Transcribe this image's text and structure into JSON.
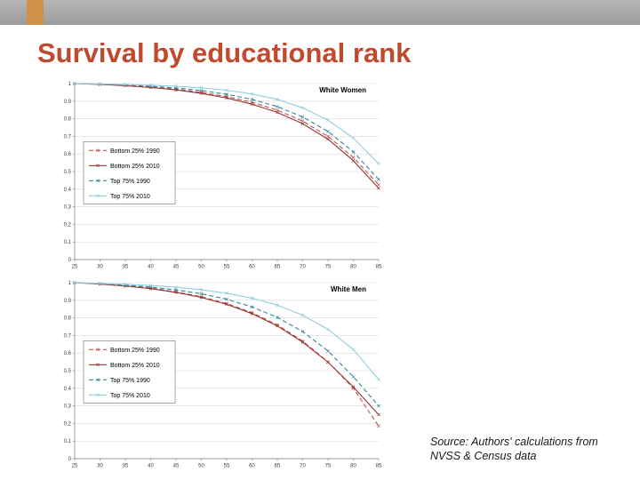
{
  "slide": {
    "title": "Survival by educational rank",
    "source_line1": "Source: Authors' calculations from",
    "source_line2": "NVSS & Census data"
  },
  "chart_data": [
    {
      "type": "line",
      "title": "White Women",
      "xlabel": "",
      "ylabel": "",
      "grid": true,
      "legend_position": "left-middle",
      "ylim": [
        0,
        1
      ],
      "yticks": [
        "1",
        "0.9",
        "0.8",
        "0.7",
        "0.6",
        "0.5",
        "0.4",
        "0.3",
        "0.2",
        "0.1",
        "0"
      ],
      "x": [
        25,
        30,
        35,
        40,
        45,
        50,
        55,
        60,
        65,
        70,
        75,
        80,
        85
      ],
      "series": [
        {
          "name": "Bottom 25% 1990",
          "color": "#C0504D",
          "dash": "5,3",
          "values": [
            1,
            0.996,
            0.99,
            0.981,
            0.968,
            0.95,
            0.926,
            0.894,
            0.849,
            0.787,
            0.7,
            0.58,
            0.425
          ]
        },
        {
          "name": "Bottom 25% 2010",
          "color": "#943634",
          "dash": "",
          "values": [
            1,
            0.995,
            0.988,
            0.978,
            0.964,
            0.944,
            0.918,
            0.883,
            0.836,
            0.772,
            0.684,
            0.562,
            0.405
          ]
        },
        {
          "name": "Top 75% 1990",
          "color": "#31859C",
          "dash": "5,3",
          "values": [
            1,
            0.997,
            0.992,
            0.985,
            0.975,
            0.96,
            0.939,
            0.91,
            0.869,
            0.81,
            0.728,
            0.612,
            0.455
          ]
        },
        {
          "name": "Top 75% 2010",
          "color": "#92CDDC",
          "dash": "",
          "values": [
            1,
            0.998,
            0.995,
            0.991,
            0.985,
            0.976,
            0.962,
            0.941,
            0.91,
            0.862,
            0.792,
            0.69,
            0.545
          ]
        }
      ]
    },
    {
      "type": "line",
      "title": "White Men",
      "xlabel": "",
      "ylabel": "",
      "grid": true,
      "legend_position": "left-middle",
      "ylim": [
        0,
        1
      ],
      "yticks": [
        "1",
        "0.9",
        "0.8",
        "0.7",
        "0.6",
        "0.5",
        "0.4",
        "0.3",
        "0.2",
        "0.1",
        "0"
      ],
      "x": [
        25,
        30,
        35,
        40,
        45,
        50,
        55,
        60,
        65,
        70,
        75,
        80,
        85
      ],
      "series": [
        {
          "name": "Bottom 25% 1990",
          "color": "#C0504D",
          "dash": "5,3",
          "values": [
            1,
            0.993,
            0.983,
            0.969,
            0.948,
            0.92,
            0.882,
            0.83,
            0.76,
            0.668,
            0.55,
            0.4,
            0.185
          ]
        },
        {
          "name": "Bottom 25% 2010",
          "color": "#943634",
          "dash": "",
          "values": [
            1,
            0.992,
            0.981,
            0.966,
            0.945,
            0.916,
            0.877,
            0.824,
            0.754,
            0.662,
            0.548,
            0.408,
            0.25
          ]
        },
        {
          "name": "Top 75% 1990",
          "color": "#31859C",
          "dash": "5,3",
          "values": [
            1,
            0.994,
            0.986,
            0.975,
            0.959,
            0.937,
            0.906,
            0.862,
            0.803,
            0.722,
            0.612,
            0.465,
            0.3
          ]
        },
        {
          "name": "Top 75% 2010",
          "color": "#92CDDC",
          "dash": "",
          "values": [
            1,
            0.996,
            0.991,
            0.984,
            0.974,
            0.96,
            0.94,
            0.912,
            0.872,
            0.815,
            0.735,
            0.62,
            0.45
          ]
        }
      ]
    }
  ]
}
